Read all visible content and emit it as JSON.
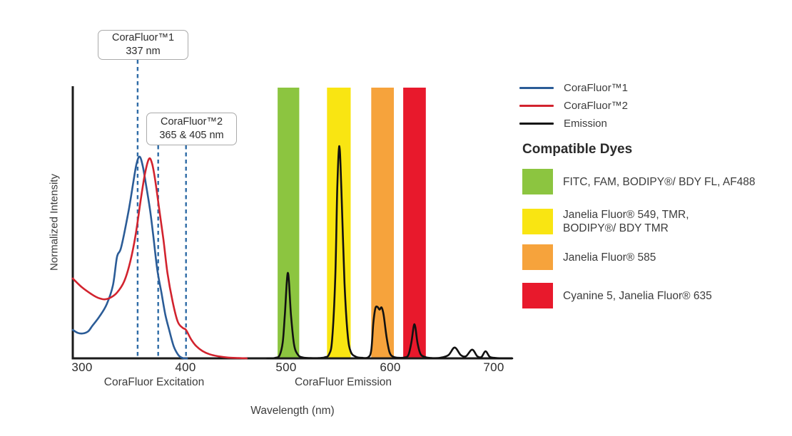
{
  "colors": {
    "curve_blue": "#2b5c97",
    "curve_red": "#d2232e",
    "emission_black": "#111111",
    "dash_blue": "#2e6ba6",
    "band_green": "#8cc540",
    "band_yellow": "#f9e512",
    "band_orange": "#f6a33c",
    "band_red": "#e8192c",
    "axis_black": "#1a1a1a"
  },
  "annotations": {
    "box1": {
      "line1": "CoraFluor™1",
      "line2": "337 nm"
    },
    "box2": {
      "line1": "CoraFluor™2",
      "line2": "365 & 405 nm"
    }
  },
  "legend": {
    "items": [
      {
        "label": "CoraFluor™1",
        "color": "#2b5c97"
      },
      {
        "label": "CoraFluor™2",
        "color": "#d2232e"
      },
      {
        "label": "Emission",
        "color": "#111111"
      }
    ]
  },
  "dyes": {
    "heading": "Compatible Dyes",
    "items": [
      {
        "color": "#8cc540",
        "lines": [
          "FITC, FAM, BODIPY®/ BDY FL, AF488"
        ]
      },
      {
        "color": "#f9e512",
        "lines": [
          "Janelia Fluor® 549, TMR,",
          "BODIPY®/ BDY TMR"
        ]
      },
      {
        "color": "#f6a33c",
        "lines": [
          "Janelia Fluor® 585"
        ]
      },
      {
        "color": "#e8192c",
        "lines": [
          "Cyanine 5, Janelia Fluor® 635"
        ]
      }
    ]
  },
  "chart_data": {
    "type": "line",
    "xlabel": "Wavelength (nm)",
    "ylabel": "Normalized Intensity",
    "x_ticks": [
      300,
      400,
      500,
      600,
      700
    ],
    "x_range_nm": [
      291,
      718
    ],
    "ylim": [
      0,
      1
    ],
    "grid": false,
    "x_section_labels": [
      "CoraFluor Excitation",
      "CoraFluor Emission"
    ],
    "dashed_lines_nm_as_drawn": [
      354,
      374,
      401
    ],
    "dashed_line_labels_nm": [
      337,
      365,
      405
    ],
    "bands": [
      {
        "name": "filter-green",
        "nm": [
          490,
          511
        ],
        "color": "#8cc540"
      },
      {
        "name": "filter-yellow",
        "nm": [
          538,
          561
        ],
        "color": "#f9e512"
      },
      {
        "name": "filter-orange",
        "nm": [
          581,
          603
        ],
        "color": "#f6a33c"
      },
      {
        "name": "filter-red",
        "nm": [
          612,
          634
        ],
        "color": "#e8192c"
      }
    ],
    "series": [
      {
        "name": "CoraFluor™1 excitation",
        "color": "#2b5c97",
        "points": [
          [
            291,
            0.105
          ],
          [
            296,
            0.094
          ],
          [
            301,
            0.092
          ],
          [
            306,
            0.1
          ],
          [
            310,
            0.12
          ],
          [
            317,
            0.155
          ],
          [
            324,
            0.2
          ],
          [
            330,
            0.27
          ],
          [
            334,
            0.375
          ],
          [
            338,
            0.41
          ],
          [
            345,
            0.54
          ],
          [
            350,
            0.655
          ],
          [
            353,
            0.72
          ],
          [
            356,
            0.745
          ],
          [
            359,
            0.71
          ],
          [
            362,
            0.645
          ],
          [
            366,
            0.55
          ],
          [
            369,
            0.46
          ],
          [
            373,
            0.33
          ],
          [
            377,
            0.245
          ],
          [
            381,
            0.16
          ],
          [
            385,
            0.1
          ],
          [
            389,
            0.045
          ],
          [
            393,
            0.015
          ],
          [
            396,
            0.004
          ],
          [
            399,
            0
          ],
          [
            402,
            0
          ]
        ]
      },
      {
        "name": "CoraFluor™2 excitation",
        "color": "#d2232e",
        "points": [
          [
            291,
            0.295
          ],
          [
            300,
            0.262
          ],
          [
            310,
            0.235
          ],
          [
            316,
            0.223
          ],
          [
            322,
            0.218
          ],
          [
            328,
            0.225
          ],
          [
            334,
            0.243
          ],
          [
            341,
            0.285
          ],
          [
            347,
            0.36
          ],
          [
            352,
            0.455
          ],
          [
            357,
            0.585
          ],
          [
            361,
            0.68
          ],
          [
            365,
            0.737
          ],
          [
            368,
            0.72
          ],
          [
            371,
            0.66
          ],
          [
            375,
            0.55
          ],
          [
            379,
            0.44
          ],
          [
            383,
            0.315
          ],
          [
            388,
            0.21
          ],
          [
            393,
            0.135
          ],
          [
            398,
            0.112
          ],
          [
            401,
            0.105
          ],
          [
            406,
            0.07
          ],
          [
            411,
            0.045
          ],
          [
            417,
            0.027
          ],
          [
            424,
            0.015
          ],
          [
            432,
            0.008
          ],
          [
            442,
            0.003
          ],
          [
            452,
            0.001
          ],
          [
            460,
            0
          ]
        ]
      },
      {
        "name": "Emission",
        "color": "#111111",
        "points": [
          [
            480,
            0
          ],
          [
            488,
            0.002
          ],
          [
            492,
            0.012
          ],
          [
            495,
            0.06
          ],
          [
            497,
            0.16
          ],
          [
            500,
            0.316
          ],
          [
            503,
            0.16
          ],
          [
            506,
            0.05
          ],
          [
            510,
            0.012
          ],
          [
            515,
            0.003
          ],
          [
            522,
            0.001
          ],
          [
            530,
            0.001
          ],
          [
            536,
            0.004
          ],
          [
            540,
            0.015
          ],
          [
            543,
            0.07
          ],
          [
            546,
            0.3
          ],
          [
            548,
            0.63
          ],
          [
            550,
            0.784
          ],
          [
            552,
            0.62
          ],
          [
            555,
            0.28
          ],
          [
            558,
            0.09
          ],
          [
            561,
            0.025
          ],
          [
            566,
            0.006
          ],
          [
            572,
            0.002
          ],
          [
            578,
            0.004
          ],
          [
            581,
            0.03
          ],
          [
            583,
            0.13
          ],
          [
            585,
            0.185
          ],
          [
            587,
            0.19
          ],
          [
            589,
            0.18
          ],
          [
            591,
            0.188
          ],
          [
            593,
            0.16
          ],
          [
            596,
            0.075
          ],
          [
            599,
            0.02
          ],
          [
            603,
            0.005
          ],
          [
            608,
            0.002
          ],
          [
            613,
            0.003
          ],
          [
            617,
            0.012
          ],
          [
            620,
            0.06
          ],
          [
            623,
            0.126
          ],
          [
            626,
            0.055
          ],
          [
            629,
            0.015
          ],
          [
            634,
            0.004
          ],
          [
            640,
            0.001
          ],
          [
            648,
            0.002
          ],
          [
            656,
            0.012
          ],
          [
            662,
            0.04
          ],
          [
            668,
            0.012
          ],
          [
            673,
            0.008
          ],
          [
            679,
            0.032
          ],
          [
            684,
            0.008
          ],
          [
            688,
            0.005
          ],
          [
            692,
            0.026
          ],
          [
            696,
            0.006
          ],
          [
            700,
            0.002
          ],
          [
            708,
            0
          ],
          [
            718,
            0
          ]
        ]
      }
    ],
    "emission_peaks_nm": [
      500,
      550,
      590,
      623
    ]
  }
}
